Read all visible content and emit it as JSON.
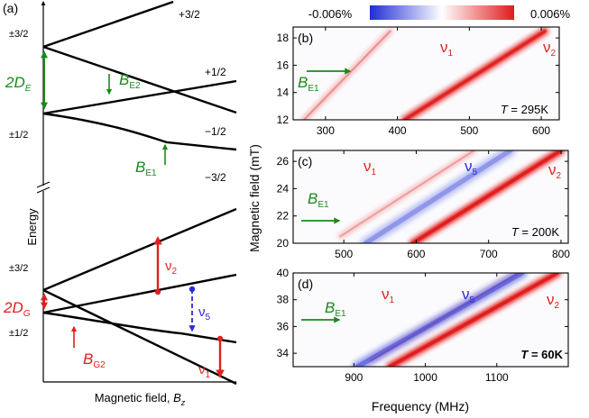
{
  "figure": {
    "colorbar": {
      "min_label": "-0.006%",
      "max_label": "0.006%",
      "neg_color": "#1f2dd6",
      "pos_color": "#e01b1b"
    },
    "shared_ylabel": "Magnetic field (mT)",
    "shared_xlabel": "Frequency (MHz)"
  },
  "panel_a": {
    "label": "(a)",
    "ylabel": "Energy",
    "xlabel_main": "Magnetic field, ",
    "xlabel_var": "B",
    "xlabel_sub": "z",
    "upper": {
      "level_labels": [
        "+3/2",
        "+1/2",
        "−1/2",
        "−3/2"
      ],
      "left_labels": [
        "±3/2",
        "±1/2"
      ],
      "splitting": {
        "main": "2D",
        "sub": "E"
      },
      "arrow_labels": [
        {
          "main": "B",
          "sub": "E2"
        },
        {
          "main": "B",
          "sub": "E1"
        }
      ]
    },
    "lower": {
      "left_labels": [
        "±3/2",
        "±1/2"
      ],
      "splitting": {
        "main": "2D",
        "sub": "G"
      },
      "transitions": [
        {
          "main": "ν",
          "sub": "2"
        },
        {
          "main": "ν",
          "sub": "5"
        },
        {
          "main": "ν",
          "sub": "1"
        }
      ],
      "arrow_labels": [
        {
          "main": "B",
          "sub": "G2"
        }
      ]
    },
    "colors": {
      "green": "#1a8a1a",
      "red": "#e0201c",
      "blue": "#2a2ad8"
    }
  },
  "chart_data": [
    {
      "panel": "(b)",
      "type": "heatmap",
      "xlim": [
        255,
        625
      ],
      "ylim": [
        12,
        18.8
      ],
      "xticks": [
        300,
        400,
        500,
        600
      ],
      "yticks": [
        12,
        14,
        16,
        18
      ],
      "temperature_label": "T = 295K",
      "annotations": [
        {
          "main": "ν",
          "sub": "1"
        },
        {
          "main": "ν",
          "sub": "2"
        },
        {
          "main": "B",
          "sub": "E1"
        }
      ],
      "series": [
        {
          "name": "ν1",
          "sign": "pos",
          "strength": 0.35,
          "x": [
            270,
            390
          ],
          "y": [
            12,
            18.5
          ]
        },
        {
          "name": "ν2",
          "sign": "pos",
          "strength": 0.9,
          "x": [
            410,
            605
          ],
          "y": [
            12,
            18.5
          ]
        }
      ]
    },
    {
      "panel": "(c)",
      "type": "heatmap",
      "xlim": [
        430,
        810
      ],
      "ylim": [
        20,
        26.8
      ],
      "xticks": [
        500,
        600,
        700,
        800
      ],
      "yticks": [
        20,
        22,
        24,
        26
      ],
      "temperature_label": "T = 200K",
      "annotations": [
        {
          "main": "ν",
          "sub": "1"
        },
        {
          "main": "ν",
          "sub": "5"
        },
        {
          "main": "ν",
          "sub": "2"
        },
        {
          "main": "B",
          "sub": "E1"
        }
      ],
      "series": [
        {
          "name": "ν1",
          "sign": "pos",
          "strength": 0.3,
          "x": [
            495,
            680
          ],
          "y": [
            20.5,
            26.8
          ]
        },
        {
          "name": "ν5",
          "sign": "neg",
          "strength": 0.3,
          "x": [
            530,
            730
          ],
          "y": [
            20,
            26.8
          ]
        },
        {
          "name": "ν2",
          "sign": "pos",
          "strength": 1.0,
          "x": [
            595,
            800
          ],
          "y": [
            20,
            26.8
          ]
        }
      ]
    },
    {
      "panel": "(d)",
      "type": "heatmap",
      "xlim": [
        815,
        1200
      ],
      "ylim": [
        33,
        40
      ],
      "xticks": [
        900,
        1000,
        1100
      ],
      "yticks": [
        34,
        36,
        38,
        40
      ],
      "temperature_label": "T = 60K",
      "annotations": [
        {
          "main": "ν",
          "sub": "1"
        },
        {
          "main": "ν",
          "sub": "5"
        },
        {
          "main": "ν",
          "sub": "2"
        },
        {
          "main": "B",
          "sub": "E1"
        }
      ],
      "series": [
        {
          "name": "ν1",
          "sign": "pos",
          "strength": 0.25,
          "x": [
            925,
            1130
          ],
          "y": [
            33.5,
            40
          ]
        },
        {
          "name": "ν5",
          "sign": "neg",
          "strength": 0.45,
          "x": [
            905,
            1135
          ],
          "y": [
            33,
            40
          ]
        },
        {
          "name": "ν2",
          "sign": "pos",
          "strength": 1.0,
          "x": [
            950,
            1185
          ],
          "y": [
            33,
            40
          ]
        }
      ]
    }
  ]
}
